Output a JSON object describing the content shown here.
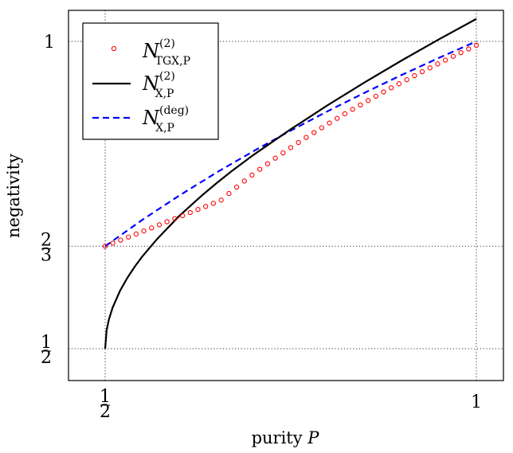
{
  "chart_data": {
    "type": "line",
    "xlabel": "purity",
    "xlabel_var": "P",
    "ylabel": "negativity",
    "xlim": [
      0.45,
      1.07
    ],
    "ylim": [
      0.47,
      1.085
    ],
    "x_ticks": [
      {
        "value": 0.5,
        "num": "1",
        "den": "2"
      },
      {
        "value": 1.0,
        "text": "1"
      }
    ],
    "y_ticks": [
      {
        "value": 0.5,
        "num": "1",
        "den": "2"
      },
      {
        "value": 0.6667,
        "num": "2",
        "den": "3"
      },
      {
        "value": 1.0,
        "text": "1"
      }
    ],
    "grid": "dotted",
    "legend_position": "top-left",
    "series": [
      {
        "name_base": "N",
        "name_sub": "TGX,P",
        "name_sup": "(2)",
        "style": "markers",
        "color": "#ff0000",
        "x": [
          0.5,
          0.5104,
          0.5208,
          0.5313,
          0.5417,
          0.5521,
          0.5625,
          0.5729,
          0.5833,
          0.5938,
          0.6042,
          0.6146,
          0.625,
          0.6354,
          0.6458,
          0.6563,
          0.6667,
          0.6771,
          0.6875,
          0.6979,
          0.7083,
          0.7188,
          0.7292,
          0.7396,
          0.75,
          0.7604,
          0.7708,
          0.7813,
          0.7917,
          0.8021,
          0.8125,
          0.8229,
          0.8333,
          0.8438,
          0.8542,
          0.8646,
          0.875,
          0.8854,
          0.8958,
          0.9063,
          0.9167,
          0.9271,
          0.9375,
          0.9479,
          0.9583,
          0.9688,
          0.9792,
          0.9896,
          1.0
        ],
        "y": [
          0.6667,
          0.6717,
          0.6767,
          0.6817,
          0.6866,
          0.6916,
          0.6966,
          0.7016,
          0.7066,
          0.7116,
          0.7165,
          0.7215,
          0.7265,
          0.7315,
          0.7365,
          0.7418,
          0.7525,
          0.7629,
          0.7728,
          0.7825,
          0.7919,
          0.801,
          0.81,
          0.8187,
          0.8272,
          0.8355,
          0.8437,
          0.8517,
          0.8595,
          0.8672,
          0.8748,
          0.8822,
          0.8895,
          0.8967,
          0.9038,
          0.9108,
          0.9177,
          0.9245,
          0.9311,
          0.9377,
          0.9443,
          0.9507,
          0.957,
          0.9633,
          0.9695,
          0.9757,
          0.9817,
          0.9877,
          0.9937
        ]
      },
      {
        "name_base": "N",
        "name_sub": "X,P",
        "name_sup": "(2)",
        "style": "solid",
        "color": "#000000",
        "x": [
          0.5,
          0.502,
          0.505,
          0.51,
          0.52,
          0.53,
          0.54,
          0.55,
          0.57,
          0.6,
          0.63,
          0.65,
          0.67,
          0.7,
          0.75,
          0.8,
          0.85,
          0.9,
          0.95,
          1.0
        ],
        "y": [
          0.5,
          0.53,
          0.5474,
          0.5667,
          0.5942,
          0.6155,
          0.6337,
          0.65,
          0.6785,
          0.7162,
          0.749,
          0.7693,
          0.7885,
          0.8155,
          0.8571,
          0.8964,
          0.9337,
          0.9694,
          1.0036,
          1.0366
        ]
      },
      {
        "name_base": "N",
        "name_sub": "X,P",
        "name_sup": "(deg)",
        "style": "dashed",
        "color": "#0000ff",
        "x": [
          0.5,
          0.55,
          0.6,
          0.65,
          0.7,
          0.75,
          0.8,
          0.85,
          0.9,
          0.95,
          1.0
        ],
        "y": [
          0.6667,
          0.7096,
          0.7493,
          0.7866,
          0.8216,
          0.8549,
          0.8866,
          0.9168,
          0.9457,
          0.9734,
          1.0
        ]
      }
    ]
  }
}
